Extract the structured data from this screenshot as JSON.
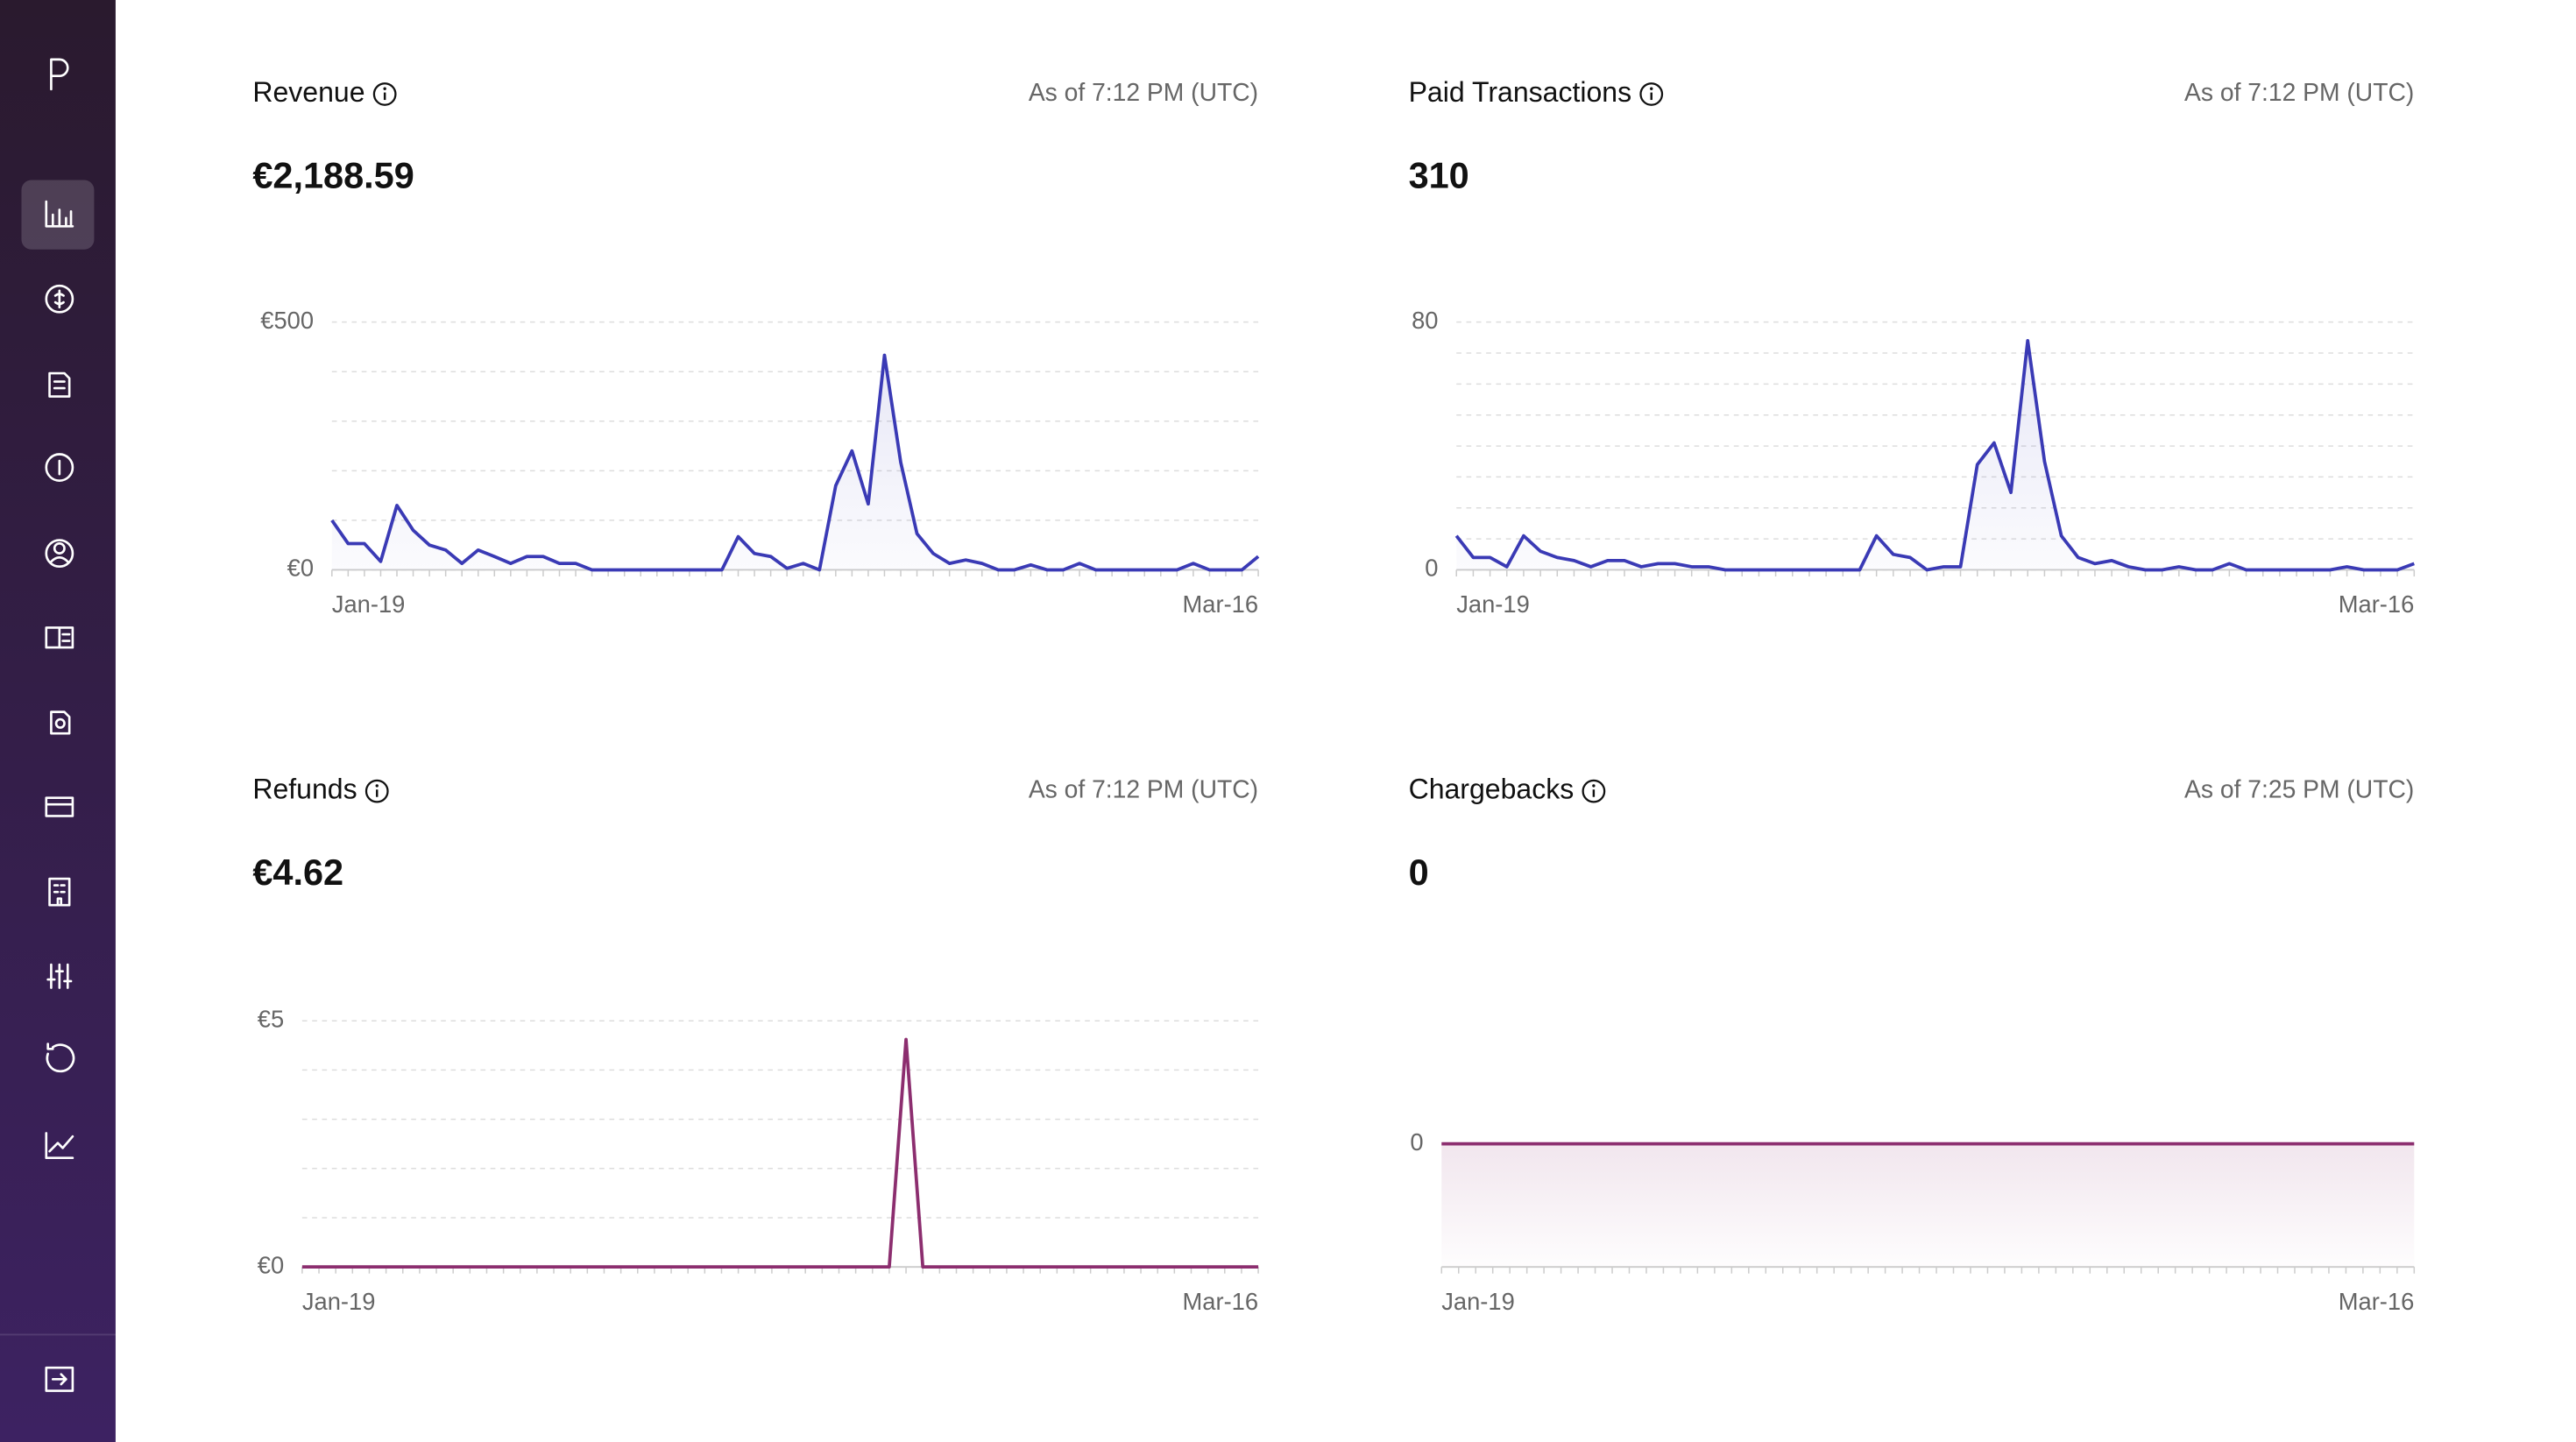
{
  "chart_data": [
    {
      "type": "line",
      "title": "Revenue",
      "subtitle": "As of 7:12 PM (UTC)",
      "headline": "€2,188.59",
      "categories": [
        "Jan-19",
        null,
        null,
        null,
        null,
        null,
        null,
        null,
        null,
        null,
        null,
        null,
        null,
        null,
        null,
        null,
        null,
        null,
        null,
        null,
        null,
        null,
        null,
        null,
        null,
        null,
        null,
        null,
        null,
        null,
        null,
        null,
        null,
        null,
        null,
        null,
        null,
        null,
        null,
        null,
        null,
        null,
        null,
        null,
        null,
        null,
        null,
        null,
        null,
        null,
        null,
        null,
        null,
        null,
        null,
        null,
        null,
        "Mar-16"
      ],
      "values": [
        100,
        53,
        53,
        17,
        130,
        80,
        50,
        40,
        13,
        40,
        27,
        13,
        27,
        27,
        13,
        13,
        0,
        0,
        0,
        0,
        0,
        0,
        0,
        0,
        0,
        67,
        33,
        27,
        3,
        13,
        0,
        170,
        240,
        133,
        433,
        217,
        73,
        33,
        13,
        20,
        13,
        0,
        0,
        10,
        0,
        0,
        13,
        0,
        0,
        0,
        0,
        0,
        0,
        13,
        0,
        0,
        0,
        27
      ],
      "color": "#3a3ab5",
      "fill_area": true,
      "ylim": [
        0,
        500
      ],
      "yticks": [
        {
          "value": 0,
          "label": "€0"
        },
        {
          "value": 500,
          "label": "€500"
        }
      ],
      "grid": true,
      "grid_lines": [
        0,
        100,
        200,
        300,
        400,
        500
      ]
    },
    {
      "type": "line",
      "title": "Paid Transactions",
      "subtitle": "As of 7:12 PM (UTC)",
      "headline": "310",
      "categories": [
        "Jan-19",
        null,
        null,
        null,
        null,
        null,
        null,
        null,
        null,
        null,
        null,
        null,
        null,
        null,
        null,
        null,
        null,
        null,
        null,
        null,
        null,
        null,
        null,
        null,
        null,
        null,
        null,
        null,
        null,
        null,
        null,
        null,
        null,
        null,
        null,
        null,
        null,
        null,
        null,
        null,
        null,
        null,
        null,
        null,
        null,
        null,
        null,
        null,
        null,
        null,
        null,
        null,
        null,
        null,
        null,
        null,
        null,
        "Mar-16"
      ],
      "values": [
        11,
        4,
        4,
        1,
        11,
        6,
        4,
        3,
        1,
        3,
        3,
        1,
        2,
        2,
        1,
        1,
        0,
        0,
        0,
        0,
        0,
        0,
        0,
        0,
        0,
        11,
        5,
        4,
        0,
        1,
        1,
        34,
        41,
        25,
        74,
        35,
        11,
        4,
        2,
        3,
        1,
        0,
        0,
        1,
        0,
        0,
        2,
        0,
        0,
        0,
        0,
        0,
        0,
        1,
        0,
        0,
        0,
        2
      ],
      "color": "#3a3ab5",
      "fill_area": true,
      "ylim": [
        0,
        80
      ],
      "yticks": [
        0,
        80
      ],
      "grid": true,
      "grid_lines": [
        0,
        10,
        20,
        30,
        40,
        50,
        60,
        70,
        80
      ]
    },
    {
      "type": "line",
      "title": "Refunds",
      "subtitle": "As of 7:12 PM (UTC)",
      "headline": "€4.62",
      "categories": [
        "Jan-19",
        null,
        null,
        null,
        null,
        null,
        null,
        null,
        null,
        null,
        null,
        null,
        null,
        null,
        null,
        null,
        null,
        null,
        null,
        null,
        null,
        null,
        null,
        null,
        null,
        null,
        null,
        null,
        null,
        null,
        null,
        null,
        null,
        null,
        null,
        null,
        null,
        null,
        null,
        null,
        null,
        null,
        null,
        null,
        null,
        null,
        null,
        null,
        null,
        null,
        null,
        null,
        null,
        null,
        null,
        null,
        null,
        "Mar-16"
      ],
      "values": [
        0,
        0,
        0,
        0,
        0,
        0,
        0,
        0,
        0,
        0,
        0,
        0,
        0,
        0,
        0,
        0,
        0,
        0,
        0,
        0,
        0,
        0,
        0,
        0,
        0,
        0,
        0,
        0,
        0,
        0,
        0,
        0,
        0,
        0,
        0,
        0,
        4.62,
        0,
        0,
        0,
        0,
        0,
        0,
        0,
        0,
        0,
        0,
        0,
        0,
        0,
        0,
        0,
        0,
        0,
        0,
        0,
        0,
        0
      ],
      "color": "#8c2e6f",
      "fill_area": false,
      "ylim": [
        0,
        5
      ],
      "yticks": [
        {
          "value": 0,
          "label": "€0"
        },
        {
          "value": 5,
          "label": "€5"
        }
      ],
      "grid": true,
      "grid_lines": [
        0,
        1,
        2,
        3,
        4,
        5
      ]
    },
    {
      "type": "line",
      "title": "Chargebacks",
      "subtitle": "As of 7:25 PM (UTC)",
      "headline": "0",
      "categories": [
        "Jan-19",
        null,
        null,
        null,
        null,
        null,
        null,
        null,
        null,
        null,
        null,
        null,
        null,
        null,
        null,
        null,
        null,
        null,
        null,
        null,
        null,
        null,
        null,
        null,
        null,
        null,
        null,
        null,
        null,
        null,
        null,
        null,
        null,
        null,
        null,
        null,
        null,
        null,
        null,
        null,
        null,
        null,
        null,
        null,
        null,
        null,
        null,
        null,
        null,
        null,
        null,
        null,
        null,
        null,
        null,
        null,
        null,
        "Mar-16"
      ],
      "values": [
        0,
        0,
        0,
        0,
        0,
        0,
        0,
        0,
        0,
        0,
        0,
        0,
        0,
        0,
        0,
        0,
        0,
        0,
        0,
        0,
        0,
        0,
        0,
        0,
        0,
        0,
        0,
        0,
        0,
        0,
        0,
        0,
        0,
        0,
        0,
        0,
        0,
        0,
        0,
        0,
        0,
        0,
        0,
        0,
        0,
        0,
        0,
        0,
        0,
        0,
        0,
        0,
        0,
        0,
        0,
        0,
        0,
        0
      ],
      "color": "#8c2e6f",
      "fill_area": true,
      "fill_to_bottom": true,
      "ylim": [
        -1,
        1
      ],
      "yticks": [
        0
      ],
      "grid": false
    }
  ]
}
